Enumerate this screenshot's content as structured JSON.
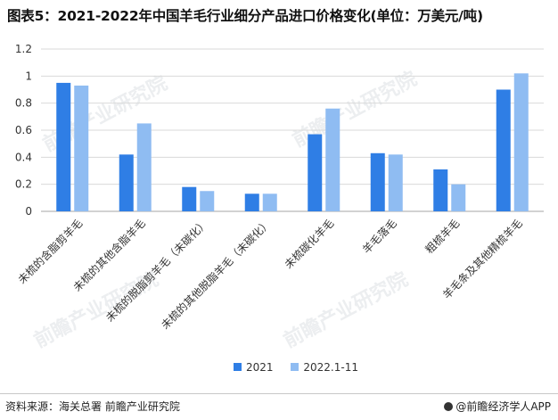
{
  "title": "图表5：2021-2022年中国羊毛行业细分产品进口价格变化(单位：万美元/吨)",
  "source": "资料来源：海关总署  前瞻产业研究院",
  "credit": "@前瞻经济学人APP",
  "watermark": "前瞻产业研究院",
  "colors": {
    "s2021": "#2f7ee5",
    "s2022": "#8fbcf2",
    "grid": "#d9d9d9",
    "axis": "#a6a6a6"
  },
  "chart_data": {
    "type": "bar",
    "categories": [
      "未梳的含脂剪羊毛",
      "未梳的其他含脂羊毛",
      "未梳的脱脂剪羊毛（未碳化）",
      "未梳的其他脱脂羊毛（未碳化）",
      "未梳碳化羊毛",
      "羊毛落毛",
      "粗梳羊毛",
      "羊毛条及其他精梳羊毛"
    ],
    "series": [
      {
        "name": "2021",
        "values": [
          0.95,
          0.42,
          0.18,
          0.13,
          0.57,
          0.43,
          0.31,
          0.9
        ]
      },
      {
        "name": "2022.1-11",
        "values": [
          0.93,
          0.65,
          0.15,
          0.13,
          0.76,
          0.42,
          0.2,
          1.02
        ]
      }
    ],
    "yticks": [
      "0",
      "0.2",
      "0.4",
      "0.6",
      "0.8",
      "1",
      "1.2"
    ],
    "ylim": [
      0,
      1.2
    ],
    "grid": true,
    "legend": "bottom"
  }
}
